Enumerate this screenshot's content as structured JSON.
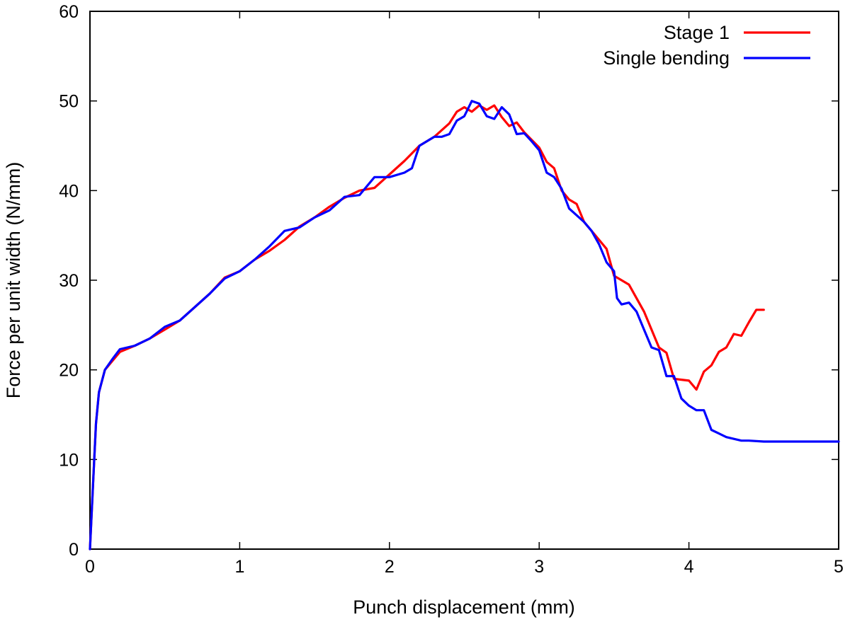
{
  "chart_data": {
    "type": "line",
    "title": "",
    "xlabel": "Punch displacement (mm)",
    "ylabel": "Force per unit width (N/mm)",
    "xlim": [
      0,
      5
    ],
    "ylim": [
      0,
      60
    ],
    "xticks": [
      "0",
      "1",
      "2",
      "3",
      "4",
      "5"
    ],
    "yticks": [
      "0",
      "10",
      "20",
      "30",
      "40",
      "50",
      "60"
    ],
    "grid": false,
    "legend_position": "top-right",
    "series": [
      {
        "name": "Stage 1",
        "color": "#ff0000",
        "points": [
          [
            0.0,
            0
          ],
          [
            0.02,
            7
          ],
          [
            0.04,
            14
          ],
          [
            0.06,
            17.5
          ],
          [
            0.1,
            20
          ],
          [
            0.15,
            21
          ],
          [
            0.2,
            22
          ],
          [
            0.3,
            22.7
          ],
          [
            0.4,
            23.5
          ],
          [
            0.5,
            24.5
          ],
          [
            0.6,
            25.5
          ],
          [
            0.7,
            27
          ],
          [
            0.8,
            28.5
          ],
          [
            0.9,
            30.3
          ],
          [
            1.0,
            31
          ],
          [
            1.1,
            32.3
          ],
          [
            1.2,
            33.3
          ],
          [
            1.3,
            34.5
          ],
          [
            1.4,
            36
          ],
          [
            1.5,
            37
          ],
          [
            1.6,
            38.2
          ],
          [
            1.7,
            39.2
          ],
          [
            1.8,
            40
          ],
          [
            1.9,
            40.3
          ],
          [
            2.0,
            41.8
          ],
          [
            2.1,
            43.3
          ],
          [
            2.2,
            45
          ],
          [
            2.3,
            46
          ],
          [
            2.4,
            47.5
          ],
          [
            2.45,
            48.8
          ],
          [
            2.5,
            49.3
          ],
          [
            2.55,
            48.8
          ],
          [
            2.6,
            49.5
          ],
          [
            2.65,
            49
          ],
          [
            2.7,
            49.5
          ],
          [
            2.75,
            48.2
          ],
          [
            2.8,
            47.2
          ],
          [
            2.85,
            47.6
          ],
          [
            2.9,
            46.5
          ],
          [
            3.0,
            44.8
          ],
          [
            3.05,
            43.2
          ],
          [
            3.1,
            42.5
          ],
          [
            3.15,
            40
          ],
          [
            3.2,
            39
          ],
          [
            3.25,
            38.5
          ],
          [
            3.3,
            36.5
          ],
          [
            3.35,
            35.5
          ],
          [
            3.4,
            34.5
          ],
          [
            3.45,
            33.5
          ],
          [
            3.5,
            30.5
          ],
          [
            3.55,
            30
          ],
          [
            3.6,
            29.5
          ],
          [
            3.65,
            28
          ],
          [
            3.7,
            26.5
          ],
          [
            3.75,
            24.5
          ],
          [
            3.8,
            22.5
          ],
          [
            3.85,
            21.9
          ],
          [
            3.9,
            19
          ],
          [
            3.95,
            18.9
          ],
          [
            4.0,
            18.8
          ],
          [
            4.05,
            17.8
          ],
          [
            4.1,
            19.8
          ],
          [
            4.15,
            20.5
          ],
          [
            4.2,
            22
          ],
          [
            4.25,
            22.5
          ],
          [
            4.3,
            24
          ],
          [
            4.35,
            23.8
          ],
          [
            4.4,
            25.3
          ],
          [
            4.45,
            26.7
          ],
          [
            4.5,
            26.7
          ]
        ]
      },
      {
        "name": "Single bending",
        "color": "#0000ff",
        "points": [
          [
            0.0,
            0
          ],
          [
            0.02,
            7
          ],
          [
            0.04,
            14
          ],
          [
            0.06,
            17.5
          ],
          [
            0.1,
            20
          ],
          [
            0.15,
            21.2
          ],
          [
            0.2,
            22.3
          ],
          [
            0.3,
            22.7
          ],
          [
            0.4,
            23.5
          ],
          [
            0.5,
            24.8
          ],
          [
            0.6,
            25.5
          ],
          [
            0.7,
            27
          ],
          [
            0.8,
            28.5
          ],
          [
            0.9,
            30.2
          ],
          [
            1.0,
            31
          ],
          [
            1.1,
            32.3
          ],
          [
            1.2,
            33.8
          ],
          [
            1.3,
            35.5
          ],
          [
            1.4,
            35.9
          ],
          [
            1.5,
            37
          ],
          [
            1.6,
            37.8
          ],
          [
            1.7,
            39.3
          ],
          [
            1.8,
            39.5
          ],
          [
            1.9,
            41.5
          ],
          [
            2.0,
            41.5
          ],
          [
            2.1,
            42
          ],
          [
            2.15,
            42.5
          ],
          [
            2.2,
            45
          ],
          [
            2.3,
            46
          ],
          [
            2.35,
            46
          ],
          [
            2.4,
            46.3
          ],
          [
            2.45,
            47.8
          ],
          [
            2.5,
            48.3
          ],
          [
            2.55,
            50
          ],
          [
            2.6,
            49.7
          ],
          [
            2.65,
            48.3
          ],
          [
            2.7,
            48
          ],
          [
            2.75,
            49.3
          ],
          [
            2.8,
            48.5
          ],
          [
            2.85,
            46.3
          ],
          [
            2.9,
            46.4
          ],
          [
            2.95,
            45.5
          ],
          [
            3.0,
            44.5
          ],
          [
            3.05,
            42
          ],
          [
            3.1,
            41.5
          ],
          [
            3.15,
            40.2
          ],
          [
            3.2,
            38
          ],
          [
            3.3,
            36.5
          ],
          [
            3.35,
            35.5
          ],
          [
            3.4,
            34
          ],
          [
            3.45,
            32
          ],
          [
            3.5,
            31
          ],
          [
            3.52,
            28
          ],
          [
            3.55,
            27.3
          ],
          [
            3.6,
            27.5
          ],
          [
            3.65,
            26.5
          ],
          [
            3.7,
            24.5
          ],
          [
            3.75,
            22.5
          ],
          [
            3.8,
            22.2
          ],
          [
            3.85,
            19.3
          ],
          [
            3.9,
            19.3
          ],
          [
            3.95,
            16.8
          ],
          [
            4.0,
            16
          ],
          [
            4.05,
            15.5
          ],
          [
            4.1,
            15.5
          ],
          [
            4.15,
            13.3
          ],
          [
            4.2,
            12.9
          ],
          [
            4.25,
            12.5
          ],
          [
            4.3,
            12.3
          ],
          [
            4.35,
            12.1
          ],
          [
            4.4,
            12.1
          ],
          [
            4.5,
            12
          ],
          [
            4.6,
            12
          ],
          [
            4.7,
            12
          ],
          [
            4.8,
            12
          ],
          [
            5.0,
            12
          ]
        ]
      }
    ]
  }
}
